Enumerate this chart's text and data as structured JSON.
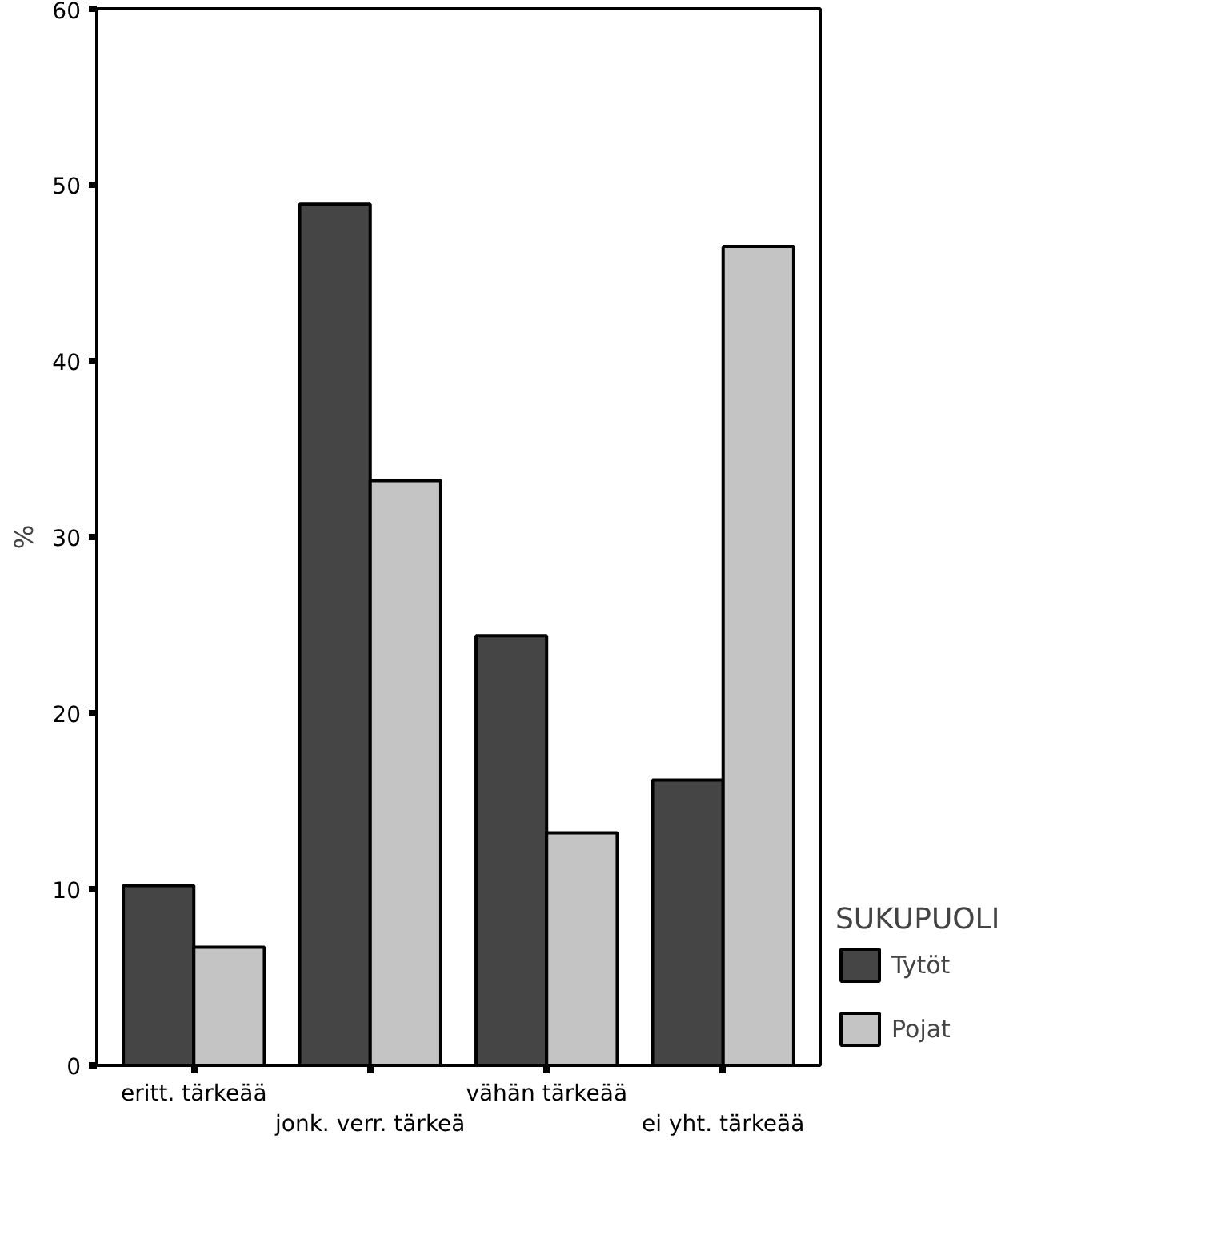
{
  "chart_data": {
    "type": "bar",
    "ylabel": "%",
    "legend_title": "SUKUPUOLI",
    "categories": [
      "eritt. tärkeää",
      "jonk. verr. tärkeä",
      "vähän tärkeää",
      "ei yht. tärkeää"
    ],
    "series": [
      {
        "name": "Tytöt",
        "color": "#454545",
        "values": [
          10.2,
          48.9,
          24.4,
          16.2
        ]
      },
      {
        "name": "Pojat",
        "color": "#c4c4c4",
        "values": [
          6.7,
          33.2,
          13.2,
          46.5
        ]
      }
    ],
    "ylim": [
      0,
      60
    ],
    "yticks": [
      0,
      10,
      20,
      30,
      40,
      50,
      60
    ],
    "grid": false,
    "legend": "right"
  }
}
